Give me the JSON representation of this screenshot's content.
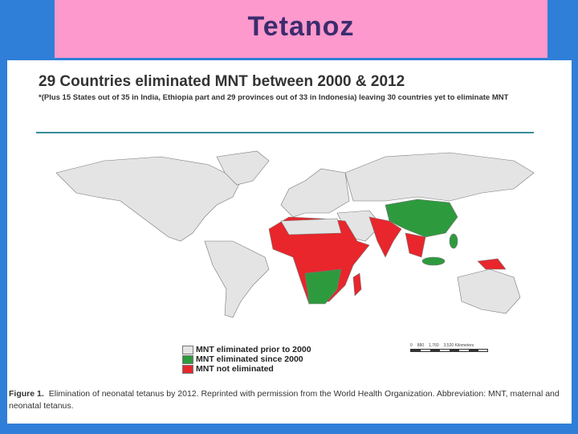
{
  "slide": {
    "title": "Tetanoz"
  },
  "figure": {
    "heading": "29 Countries eliminated MNT between 2000 & 2012",
    "subheading": "*(Plus 15 States out of 35 in India, Ethiopia part and 29 provinces out of 33 in Indonesia) leaving 30 countries yet to eliminate MNT",
    "legend": [
      {
        "label": "MNT eliminated prior to 2000",
        "color": "#e4e4e4"
      },
      {
        "label": "MNT eliminated since 2000",
        "color": "#2e9a3e"
      },
      {
        "label": "MNT not eliminated",
        "color": "#e8262c"
      }
    ],
    "scale_labels": [
      "0",
      "880",
      "1,760",
      "3,520 Kilometers"
    ],
    "caption_label": "Figure 1.",
    "caption": "Elimination of neonatal tetanus by 2012. Reprinted with permission from the World Health Organization. Abbreviation: MNT, maternal and neonatal tetanus."
  }
}
